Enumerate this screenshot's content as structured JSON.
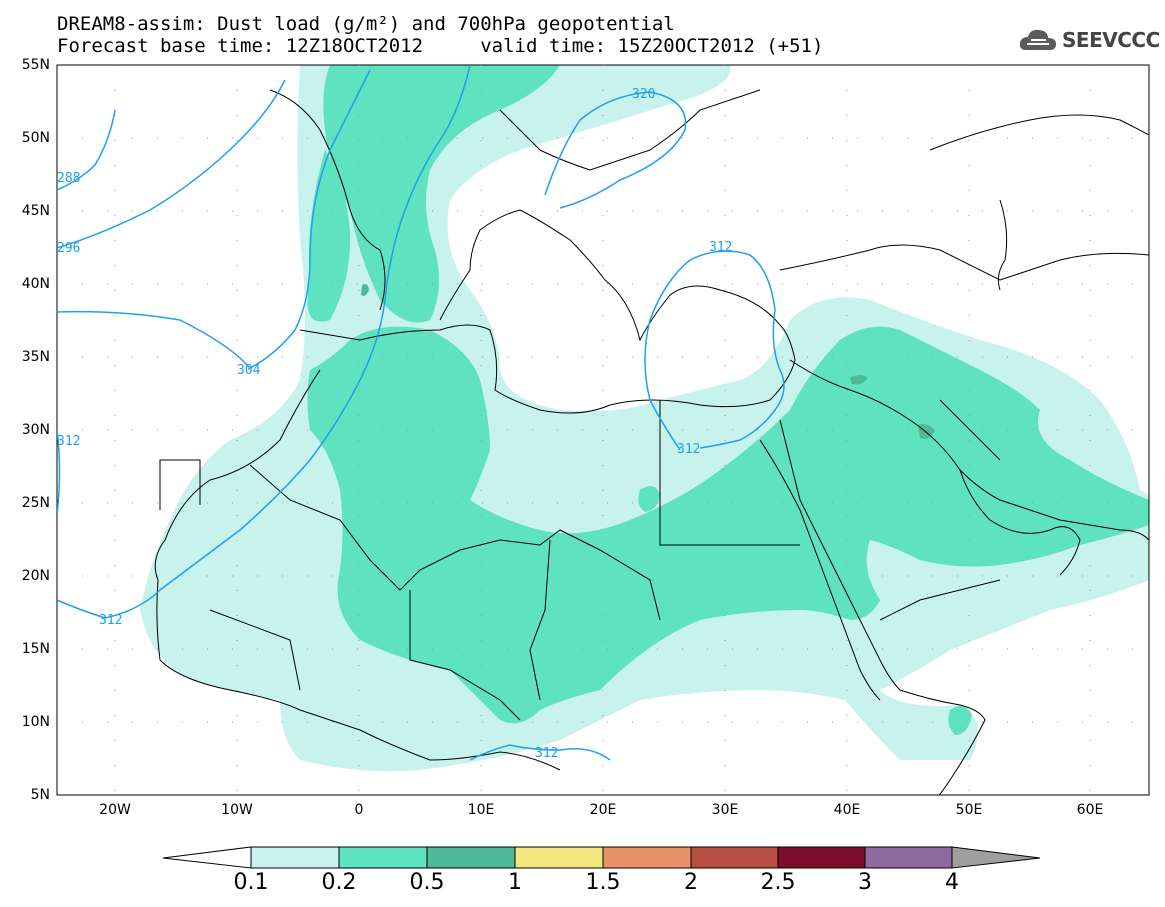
{
  "header": {
    "title_line1": "DREAM8-assim: Dust load (g/m²) and 700hPa geopotential",
    "title_line2": "Forecast base time: 12Z18OCT2012     valid time: 15Z20OCT2012 (+51)",
    "logo_text": "SEEVCCC"
  },
  "axes": {
    "lat_labels": [
      "55N",
      "50N",
      "45N",
      "40N",
      "35N",
      "30N",
      "25N",
      "20N",
      "15N",
      "10N",
      "5N"
    ],
    "lon_labels": [
      "20W",
      "10W",
      "0",
      "10E",
      "20E",
      "30E",
      "40E",
      "50E",
      "60E"
    ]
  },
  "contours": {
    "labels": [
      "288",
      "296",
      "304",
      "312",
      "320",
      "312",
      "312",
      "312",
      "312"
    ]
  },
  "colorbar": {
    "levels": [
      "0.1",
      "0.2",
      "0.5",
      "1",
      "1.5",
      "2",
      "2.5",
      "3",
      "4"
    ],
    "colors": [
      "#c8f2ec",
      "#5ee2bf",
      "#4db997",
      "#f2e67c",
      "#e8926a",
      "#b64f41",
      "#7e0c2a",
      "#8d6ba0",
      "#9f9f9f"
    ]
  }
}
